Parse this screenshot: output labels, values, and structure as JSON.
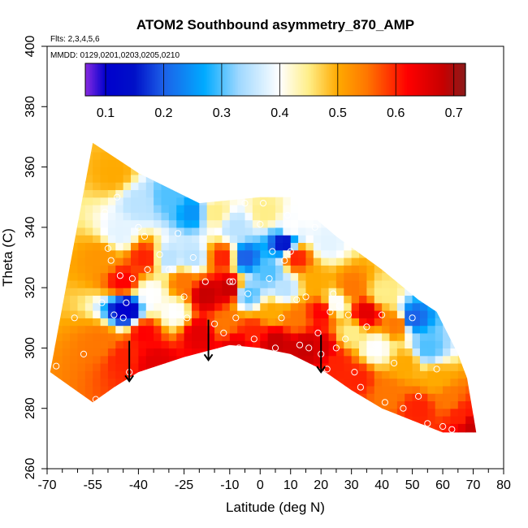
{
  "chart_data": {
    "type": "heatmap",
    "title": "ATOM2 Southbound asymmetry_870_AMP",
    "flights_note": "Flts: 2,3,4,5,6",
    "dates_note": "MMDD: 0129,0201,0203,0205,0210",
    "xlabel": "Latitude (deg N)",
    "ylabel": "Theta (C)",
    "xlim": [
      -70,
      80
    ],
    "ylim": [
      260,
      400
    ],
    "x_ticks_major": [
      -70,
      -55,
      -40,
      -25,
      -10,
      0,
      10,
      20,
      30,
      40,
      50,
      60,
      70,
      80
    ],
    "x_ticks_minor": [
      -65,
      -60,
      -50,
      -45,
      -35,
      -30,
      -20,
      -15,
      -5,
      5,
      15,
      25,
      35,
      45,
      55,
      65,
      75
    ],
    "x_tick_labels": [
      "-70",
      "-55",
      "-40",
      "-25",
      "-10",
      "0",
      "10",
      "20",
      "30",
      "40",
      "50",
      "60",
      "70",
      "80"
    ],
    "y_ticks": [
      260,
      280,
      300,
      320,
      340,
      360,
      380,
      400
    ],
    "y_tick_labels": [
      "260",
      "280",
      "300",
      "320",
      "340",
      "360",
      "380",
      "400"
    ],
    "colorbar": {
      "range": [
        0.065,
        0.72
      ],
      "ticks": [
        0.1,
        0.2,
        0.3,
        0.4,
        0.5,
        0.6,
        0.7
      ],
      "tick_labels": [
        "0.1",
        "0.2",
        "0.3",
        "0.4",
        "0.5",
        "0.6",
        "0.7"
      ],
      "stops": [
        {
          "v": 0.065,
          "c": "#8a2be2"
        },
        {
          "v": 0.1,
          "c": "#0000cd"
        },
        {
          "v": 0.15,
          "c": "#0010c8"
        },
        {
          "v": 0.2,
          "c": "#1c60e8"
        },
        {
          "v": 0.27,
          "c": "#00aaff"
        },
        {
          "v": 0.33,
          "c": "#9fd8ff"
        },
        {
          "v": 0.4,
          "c": "#ffffff"
        },
        {
          "v": 0.45,
          "c": "#ffee88"
        },
        {
          "v": 0.5,
          "c": "#ffaa00"
        },
        {
          "v": 0.55,
          "c": "#ff7700"
        },
        {
          "v": 0.62,
          "c": "#ff0000"
        },
        {
          "v": 0.68,
          "c": "#c80000"
        },
        {
          "v": 0.72,
          "c": "#8b1a1a"
        }
      ]
    },
    "domain_top": [
      [
        -55,
        368
      ],
      [
        -40,
        358
      ],
      [
        -20,
        348
      ],
      [
        0,
        350
      ],
      [
        10,
        350
      ],
      [
        25,
        337
      ],
      [
        40,
        326
      ],
      [
        52,
        316
      ],
      [
        58,
        312
      ],
      [
        65,
        298
      ],
      [
        68,
        290
      ],
      [
        71,
        272
      ]
    ],
    "domain_bottom": [
      [
        -69,
        292
      ],
      [
        -62,
        287
      ],
      [
        -55,
        282
      ],
      [
        -48,
        287
      ],
      [
        -40,
        292
      ],
      [
        -25,
        297
      ],
      [
        -10,
        301
      ],
      [
        0,
        300
      ],
      [
        10,
        298
      ],
      [
        20,
        293
      ],
      [
        30,
        286
      ],
      [
        40,
        280
      ],
      [
        50,
        276
      ],
      [
        60,
        272
      ],
      [
        71,
        272
      ]
    ],
    "field_nodes": [
      {
        "lat": -52,
        "theta": 330,
        "v": 0.52
      },
      {
        "lat": -52,
        "theta": 302,
        "v": 0.55
      },
      {
        "lat": -48,
        "theta": 358,
        "v": 0.5
      },
      {
        "lat": -46,
        "theta": 338,
        "v": 0.38
      },
      {
        "lat": -45,
        "theta": 322,
        "v": 0.62
      },
      {
        "lat": -45,
        "theta": 297,
        "v": 0.6
      },
      {
        "lat": -44,
        "theta": 313,
        "v": 0.1
      },
      {
        "lat": -40,
        "theta": 348,
        "v": 0.35
      },
      {
        "lat": -38,
        "theta": 330,
        "v": 0.6
      },
      {
        "lat": -38,
        "theta": 305,
        "v": 0.62
      },
      {
        "lat": -36,
        "theta": 318,
        "v": 0.4
      },
      {
        "lat": -34,
        "theta": 295,
        "v": 0.65
      },
      {
        "lat": -30,
        "theta": 350,
        "v": 0.3
      },
      {
        "lat": -30,
        "theta": 330,
        "v": 0.35
      },
      {
        "lat": -28,
        "theta": 312,
        "v": 0.4
      },
      {
        "lat": -25,
        "theta": 322,
        "v": 0.55
      },
      {
        "lat": -22,
        "theta": 345,
        "v": 0.25
      },
      {
        "lat": -22,
        "theta": 330,
        "v": 0.35
      },
      {
        "lat": -20,
        "theta": 305,
        "v": 0.65
      },
      {
        "lat": -18,
        "theta": 318,
        "v": 0.68
      },
      {
        "lat": -15,
        "theta": 345,
        "v": 0.45
      },
      {
        "lat": -12,
        "theta": 330,
        "v": 0.6
      },
      {
        "lat": -12,
        "theta": 308,
        "v": 0.55
      },
      {
        "lat": -10,
        "theta": 320,
        "v": 0.68
      },
      {
        "lat": -8,
        "theta": 340,
        "v": 0.35
      },
      {
        "lat": -8,
        "theta": 300,
        "v": 0.65
      },
      {
        "lat": -5,
        "theta": 330,
        "v": 0.2
      },
      {
        "lat": -4,
        "theta": 318,
        "v": 0.3
      },
      {
        "lat": -2,
        "theta": 305,
        "v": 0.6
      },
      {
        "lat": 2,
        "theta": 345,
        "v": 0.45
      },
      {
        "lat": 3,
        "theta": 325,
        "v": 0.3
      },
      {
        "lat": 4,
        "theta": 312,
        "v": 0.5
      },
      {
        "lat": 5,
        "theta": 302,
        "v": 0.68
      },
      {
        "lat": 8,
        "theta": 335,
        "v": 0.15
      },
      {
        "lat": 8,
        "theta": 320,
        "v": 0.35
      },
      {
        "lat": 10,
        "theta": 340,
        "v": 0.4
      },
      {
        "lat": 12,
        "theta": 330,
        "v": 0.6
      },
      {
        "lat": 12,
        "theta": 310,
        "v": 0.55
      },
      {
        "lat": 15,
        "theta": 300,
        "v": 0.68
      },
      {
        "lat": 15,
        "theta": 345,
        "v": 0.4
      },
      {
        "lat": 18,
        "theta": 322,
        "v": 0.5
      },
      {
        "lat": 20,
        "theta": 312,
        "v": 0.62
      },
      {
        "lat": 20,
        "theta": 300,
        "v": 0.66
      },
      {
        "lat": 22,
        "theta": 335,
        "v": 0.38
      },
      {
        "lat": 25,
        "theta": 315,
        "v": 0.4
      },
      {
        "lat": 25,
        "theta": 295,
        "v": 0.6
      },
      {
        "lat": 30,
        "theta": 320,
        "v": 0.55
      },
      {
        "lat": 30,
        "theta": 305,
        "v": 0.45
      },
      {
        "lat": 32,
        "theta": 290,
        "v": 0.6
      },
      {
        "lat": 35,
        "theta": 312,
        "v": 0.65
      },
      {
        "lat": 38,
        "theta": 300,
        "v": 0.4
      },
      {
        "lat": 40,
        "theta": 318,
        "v": 0.45
      },
      {
        "lat": 42,
        "theta": 285,
        "v": 0.55
      },
      {
        "lat": 45,
        "theta": 308,
        "v": 0.55
      },
      {
        "lat": 48,
        "theta": 295,
        "v": 0.5
      },
      {
        "lat": 50,
        "theta": 310,
        "v": 0.2
      },
      {
        "lat": 52,
        "theta": 280,
        "v": 0.6
      },
      {
        "lat": 55,
        "theta": 300,
        "v": 0.3
      },
      {
        "lat": 58,
        "theta": 290,
        "v": 0.5
      },
      {
        "lat": 62,
        "theta": 283,
        "v": 0.55
      },
      {
        "lat": 66,
        "theta": 278,
        "v": 0.6
      },
      {
        "lat": 70,
        "theta": 274,
        "v": 0.68
      }
    ],
    "samples": [
      [
        -67,
        294
      ],
      [
        -61,
        310
      ],
      [
        -58,
        298
      ],
      [
        -54,
        283
      ],
      [
        -52,
        315
      ],
      [
        -51,
        345
      ],
      [
        -50,
        333
      ],
      [
        -49,
        329
      ],
      [
        -48,
        311
      ],
      [
        -47,
        350
      ],
      [
        -46,
        324
      ],
      [
        -45,
        310
      ],
      [
        -44,
        315
      ],
      [
        -43,
        292
      ],
      [
        -42,
        323
      ],
      [
        -40,
        340
      ],
      [
        -38,
        337
      ],
      [
        -37,
        326
      ],
      [
        -35,
        292
      ],
      [
        -33,
        331
      ],
      [
        -30,
        326
      ],
      [
        -27,
        338
      ],
      [
        -25,
        317
      ],
      [
        -24,
        310
      ],
      [
        -22,
        330
      ],
      [
        -18,
        322
      ],
      [
        -15,
        308
      ],
      [
        -12,
        305
      ],
      [
        -10,
        322
      ],
      [
        -9,
        322
      ],
      [
        -8,
        310
      ],
      [
        -7,
        300
      ],
      [
        -5,
        348
      ],
      [
        -4,
        318
      ],
      [
        -2,
        303
      ],
      [
        0,
        341
      ],
      [
        1,
        348
      ],
      [
        3,
        323
      ],
      [
        4,
        332
      ],
      [
        5,
        300
      ],
      [
        7,
        310
      ],
      [
        8,
        329
      ],
      [
        9,
        344
      ],
      [
        10,
        332
      ],
      [
        12,
        316
      ],
      [
        13,
        301
      ],
      [
        15,
        317
      ],
      [
        16,
        300
      ],
      [
        18,
        340
      ],
      [
        19,
        305
      ],
      [
        20,
        298
      ],
      [
        22,
        293
      ],
      [
        23,
        312
      ],
      [
        24,
        318
      ],
      [
        25,
        300
      ],
      [
        26,
        314
      ],
      [
        28,
        303
      ],
      [
        29,
        311
      ],
      [
        31,
        292
      ],
      [
        33,
        287
      ],
      [
        35,
        307
      ],
      [
        38,
        301
      ],
      [
        40,
        311
      ],
      [
        41,
        282
      ],
      [
        44,
        295
      ],
      [
        47,
        280
      ],
      [
        50,
        310
      ],
      [
        52,
        284
      ],
      [
        55,
        275
      ],
      [
        58,
        293
      ],
      [
        60,
        274
      ],
      [
        63,
        273
      ]
    ],
    "arrows": [
      {
        "lat": -43,
        "theta_from": 297,
        "theta_to": 289
      },
      {
        "lat": -17,
        "theta_from": 304,
        "theta_to": 296
      },
      {
        "lat": 20,
        "theta_from": 299,
        "theta_to": 292
      }
    ]
  }
}
